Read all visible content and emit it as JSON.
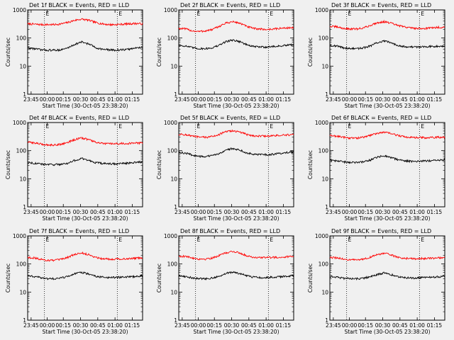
{
  "chart_data": [
    {
      "type": "line",
      "title": "Det 1f BLACK = Events, RED = LLD",
      "ylabel": "Counts/sec",
      "xlabel": "Start Time (30-Oct-05 23:38:20)",
      "yscale": "log",
      "ylim": [
        1,
        1000
      ],
      "xticks": [
        "23:45",
        "00:00",
        "00:15",
        "00:30",
        "00:45",
        "01:00",
        "01:15"
      ],
      "yticks": [
        "1",
        "10",
        "100",
        "1000"
      ],
      "markers": [
        "E",
        "E"
      ],
      "series": [
        {
          "color": "#ff0000",
          "values": [
            320,
            310,
            300,
            300,
            300,
            320,
            360,
            430,
            470,
            430,
            360,
            320,
            300,
            300,
            310,
            320,
            330,
            320
          ]
        },
        {
          "color": "#000000",
          "values": [
            44,
            42,
            38,
            37,
            37,
            38,
            45,
            60,
            72,
            62,
            46,
            40,
            38,
            37,
            38,
            40,
            44,
            48
          ]
        }
      ]
    },
    {
      "type": "line",
      "title": "Det 2f BLACK = Events, RED = LLD",
      "ylabel": "Counts/sec",
      "xlabel": "Start Time (30-Oct-05 23:38:20)",
      "yscale": "log",
      "ylim": [
        1,
        1000
      ],
      "xticks": [
        "23:45",
        "00:00",
        "00:15",
        "00:30",
        "00:45",
        "01:00",
        "01:15"
      ],
      "yticks": [
        "1",
        "10",
        "100",
        "1000"
      ],
      "markers": [
        "E",
        "E"
      ],
      "series": [
        {
          "color": "#ff0000",
          "values": [
            220,
            210,
            180,
            170,
            180,
            200,
            260,
            340,
            380,
            340,
            260,
            220,
            210,
            200,
            210,
            220,
            230,
            230
          ]
        },
        {
          "color": "#000000",
          "values": [
            55,
            52,
            45,
            42,
            42,
            45,
            55,
            75,
            85,
            75,
            58,
            50,
            48,
            48,
            50,
            52,
            55,
            58
          ]
        }
      ]
    },
    {
      "type": "line",
      "title": "Det 3f BLACK = Events, RED = LLD",
      "ylabel": "Counts/sec",
      "xlabel": "Start Time (30-Oct-05 23:38:20)",
      "yscale": "log",
      "ylim": [
        1,
        1000
      ],
      "xticks": [
        "23:45",
        "00:00",
        "00:15",
        "00:30",
        "00:45",
        "01:00",
        "01:15"
      ],
      "yticks": [
        "1",
        "10",
        "100",
        "1000"
      ],
      "markers": [
        "E",
        "E"
      ],
      "series": [
        {
          "color": "#ff0000",
          "values": [
            260,
            250,
            220,
            210,
            210,
            230,
            280,
            350,
            380,
            340,
            280,
            250,
            230,
            220,
            220,
            230,
            240,
            240
          ]
        },
        {
          "color": "#000000",
          "values": [
            55,
            52,
            45,
            42,
            42,
            45,
            52,
            68,
            78,
            68,
            56,
            50,
            48,
            48,
            50,
            50,
            52,
            52
          ]
        }
      ]
    },
    {
      "type": "line",
      "title": "Det 4f BLACK = Events, RED = LLD",
      "ylabel": "Counts/sec",
      "xlabel": "Start Time (30-Oct-05 23:38:20)",
      "yscale": "log",
      "ylim": [
        1,
        1000
      ],
      "xticks": [
        "23:45",
        "00:00",
        "00:15",
        "00:30",
        "00:45",
        "01:00",
        "01:15"
      ],
      "yticks": [
        "1",
        "10",
        "100",
        "1000"
      ],
      "markers": [
        "E",
        "E"
      ],
      "series": [
        {
          "color": "#ff0000",
          "values": [
            200,
            190,
            170,
            160,
            160,
            170,
            200,
            250,
            280,
            250,
            200,
            180,
            175,
            175,
            180,
            180,
            185,
            190
          ]
        },
        {
          "color": "#000000",
          "values": [
            38,
            36,
            33,
            32,
            32,
            33,
            36,
            45,
            52,
            45,
            38,
            35,
            34,
            34,
            35,
            36,
            38,
            40
          ]
        }
      ]
    },
    {
      "type": "line",
      "title": "Det 5f BLACK = Events, RED = LLD",
      "ylabel": "Counts/sec",
      "xlabel": "Start Time (30-Oct-05 23:38:20)",
      "yscale": "log",
      "ylim": [
        1,
        1000
      ],
      "xticks": [
        "23:45",
        "00:00",
        "00:15",
        "00:30",
        "00:45",
        "01:00",
        "01:15"
      ],
      "yticks": [
        "1",
        "10",
        "100",
        "1000"
      ],
      "markers": [
        "E",
        "E"
      ],
      "series": [
        {
          "color": "#ff0000",
          "values": [
            380,
            370,
            330,
            300,
            300,
            320,
            380,
            470,
            510,
            460,
            380,
            340,
            330,
            330,
            340,
            350,
            360,
            370
          ]
        },
        {
          "color": "#000000",
          "values": [
            85,
            82,
            70,
            62,
            62,
            66,
            80,
            105,
            120,
            105,
            85,
            75,
            72,
            72,
            75,
            80,
            85,
            90
          ]
        }
      ]
    },
    {
      "type": "line",
      "title": "Det 6f BLACK = Events, RED = LLD",
      "ylabel": "Counts/sec",
      "xlabel": "Start Time (30-Oct-05 23:38:20)",
      "yscale": "log",
      "ylim": [
        1,
        1000
      ],
      "xticks": [
        "23:45",
        "00:00",
        "00:15",
        "00:30",
        "00:45",
        "01:00",
        "01:15"
      ],
      "yticks": [
        "1",
        "10",
        "100",
        "1000"
      ],
      "markers": [
        "E",
        "E"
      ],
      "series": [
        {
          "color": "#ff0000",
          "values": [
            340,
            330,
            300,
            280,
            280,
            300,
            350,
            420,
            450,
            410,
            350,
            310,
            300,
            290,
            290,
            290,
            300,
            300
          ]
        },
        {
          "color": "#000000",
          "values": [
            45,
            43,
            40,
            38,
            38,
            40,
            46,
            58,
            66,
            58,
            48,
            44,
            42,
            42,
            43,
            44,
            46,
            48
          ]
        }
      ]
    },
    {
      "type": "line",
      "title": "Det 7f BLACK = Events, RED = LLD",
      "ylabel": "Counts/sec",
      "xlabel": "Start Time (30-Oct-05 23:38:20)",
      "yscale": "log",
      "ylim": [
        1,
        1000
      ],
      "xticks": [
        "23:45",
        "00:00",
        "00:15",
        "00:30",
        "00:45",
        "01:00",
        "01:15"
      ],
      "yticks": [
        "1",
        "10",
        "100",
        "1000"
      ],
      "markers": [
        "E",
        "E"
      ],
      "series": [
        {
          "color": "#ff0000",
          "values": [
            170,
            165,
            145,
            135,
            135,
            145,
            175,
            220,
            245,
            215,
            175,
            155,
            150,
            150,
            152,
            155,
            160,
            165
          ]
        },
        {
          "color": "#000000",
          "values": [
            38,
            36,
            32,
            30,
            30,
            32,
            36,
            45,
            50,
            44,
            37,
            34,
            33,
            33,
            34,
            35,
            36,
            38
          ]
        }
      ]
    },
    {
      "type": "line",
      "title": "Det 8f BLACK = Events, RED = LLD",
      "ylabel": "Counts/sec",
      "xlabel": "Start Time (30-Oct-05 23:38:20)",
      "yscale": "log",
      "ylim": [
        1,
        1000
      ],
      "xticks": [
        "23:45",
        "00:00",
        "00:15",
        "00:30",
        "00:45",
        "01:00",
        "01:15"
      ],
      "yticks": [
        "1",
        "10",
        "100",
        "1000"
      ],
      "markers": [
        "E",
        "E"
      ],
      "series": [
        {
          "color": "#ff0000",
          "values": [
            190,
            185,
            165,
            150,
            150,
            165,
            200,
            250,
            280,
            245,
            200,
            175,
            170,
            170,
            172,
            175,
            180,
            185
          ]
        },
        {
          "color": "#000000",
          "values": [
            38,
            36,
            32,
            30,
            30,
            32,
            36,
            46,
            52,
            46,
            38,
            34,
            33,
            33,
            34,
            35,
            37,
            38
          ]
        }
      ]
    },
    {
      "type": "line",
      "title": "Det 9f BLACK = Events, RED = LLD",
      "ylabel": "Counts/sec",
      "xlabel": "Start Time (30-Oct-05 23:38:20)",
      "yscale": "log",
      "ylim": [
        1,
        1000
      ],
      "xticks": [
        "23:45",
        "00:00",
        "00:15",
        "00:30",
        "00:45",
        "01:00",
        "01:15"
      ],
      "yticks": [
        "1",
        "10",
        "100",
        "1000"
      ],
      "markers": [
        "E",
        "E"
      ],
      "series": [
        {
          "color": "#ff0000",
          "values": [
            170,
            165,
            150,
            140,
            140,
            150,
            175,
            215,
            240,
            210,
            175,
            160,
            155,
            155,
            158,
            160,
            165,
            170
          ]
        },
        {
          "color": "#000000",
          "values": [
            36,
            34,
            31,
            30,
            30,
            31,
            35,
            42,
            48,
            42,
            36,
            33,
            32,
            32,
            33,
            34,
            35,
            36
          ]
        }
      ]
    }
  ]
}
